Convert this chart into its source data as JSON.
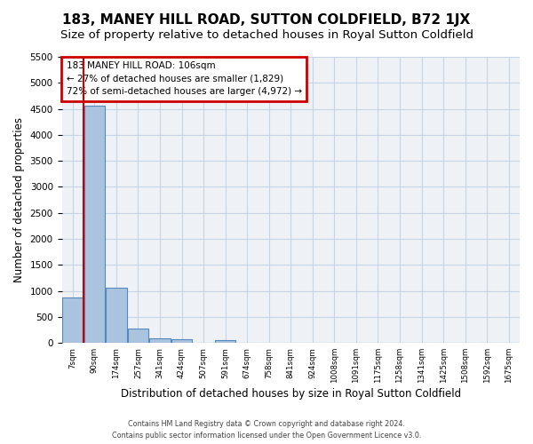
{
  "title": "183, MANEY HILL ROAD, SUTTON COLDFIELD, B72 1JX",
  "subtitle": "Size of property relative to detached houses in Royal Sutton Coldfield",
  "xlabel": "Distribution of detached houses by size in Royal Sutton Coldfield",
  "ylabel": "Number of detached properties",
  "footer_line1": "Contains HM Land Registry data © Crown copyright and database right 2024.",
  "footer_line2": "Contains public sector information licensed under the Open Government Licence v3.0.",
  "bin_labels": [
    "7sqm",
    "90sqm",
    "174sqm",
    "257sqm",
    "341sqm",
    "424sqm",
    "507sqm",
    "591sqm",
    "674sqm",
    "758sqm",
    "841sqm",
    "924sqm",
    "1008sqm",
    "1091sqm",
    "1175sqm",
    "1258sqm",
    "1341sqm",
    "1425sqm",
    "1508sqm",
    "1592sqm",
    "1675sqm"
  ],
  "bar_values": [
    880,
    4560,
    1060,
    280,
    90,
    75,
    0,
    55,
    0,
    0,
    0,
    0,
    0,
    0,
    0,
    0,
    0,
    0,
    0,
    0,
    0
  ],
  "bar_color": "#aac4e0",
  "bar_edge_color": "#5588bb",
  "annotation_line1": "183 MANEY HILL ROAD: 106sqm",
  "annotation_line2": "← 27% of detached houses are smaller (1,829)",
  "annotation_line3": "72% of semi-detached houses are larger (4,972) →",
  "red_line_x": 0.5,
  "ylim": [
    0,
    5500
  ],
  "yticks": [
    0,
    500,
    1000,
    1500,
    2000,
    2500,
    3000,
    3500,
    4000,
    4500,
    5000,
    5500
  ],
  "bg_color": "#eef2f7",
  "grid_color": "#c8d4e4",
  "annotation_box_color": "#cc0000",
  "title_fontsize": 11,
  "subtitle_fontsize": 9.5,
  "ylabel_fontsize": 8.5,
  "xlabel_fontsize": 8.5
}
